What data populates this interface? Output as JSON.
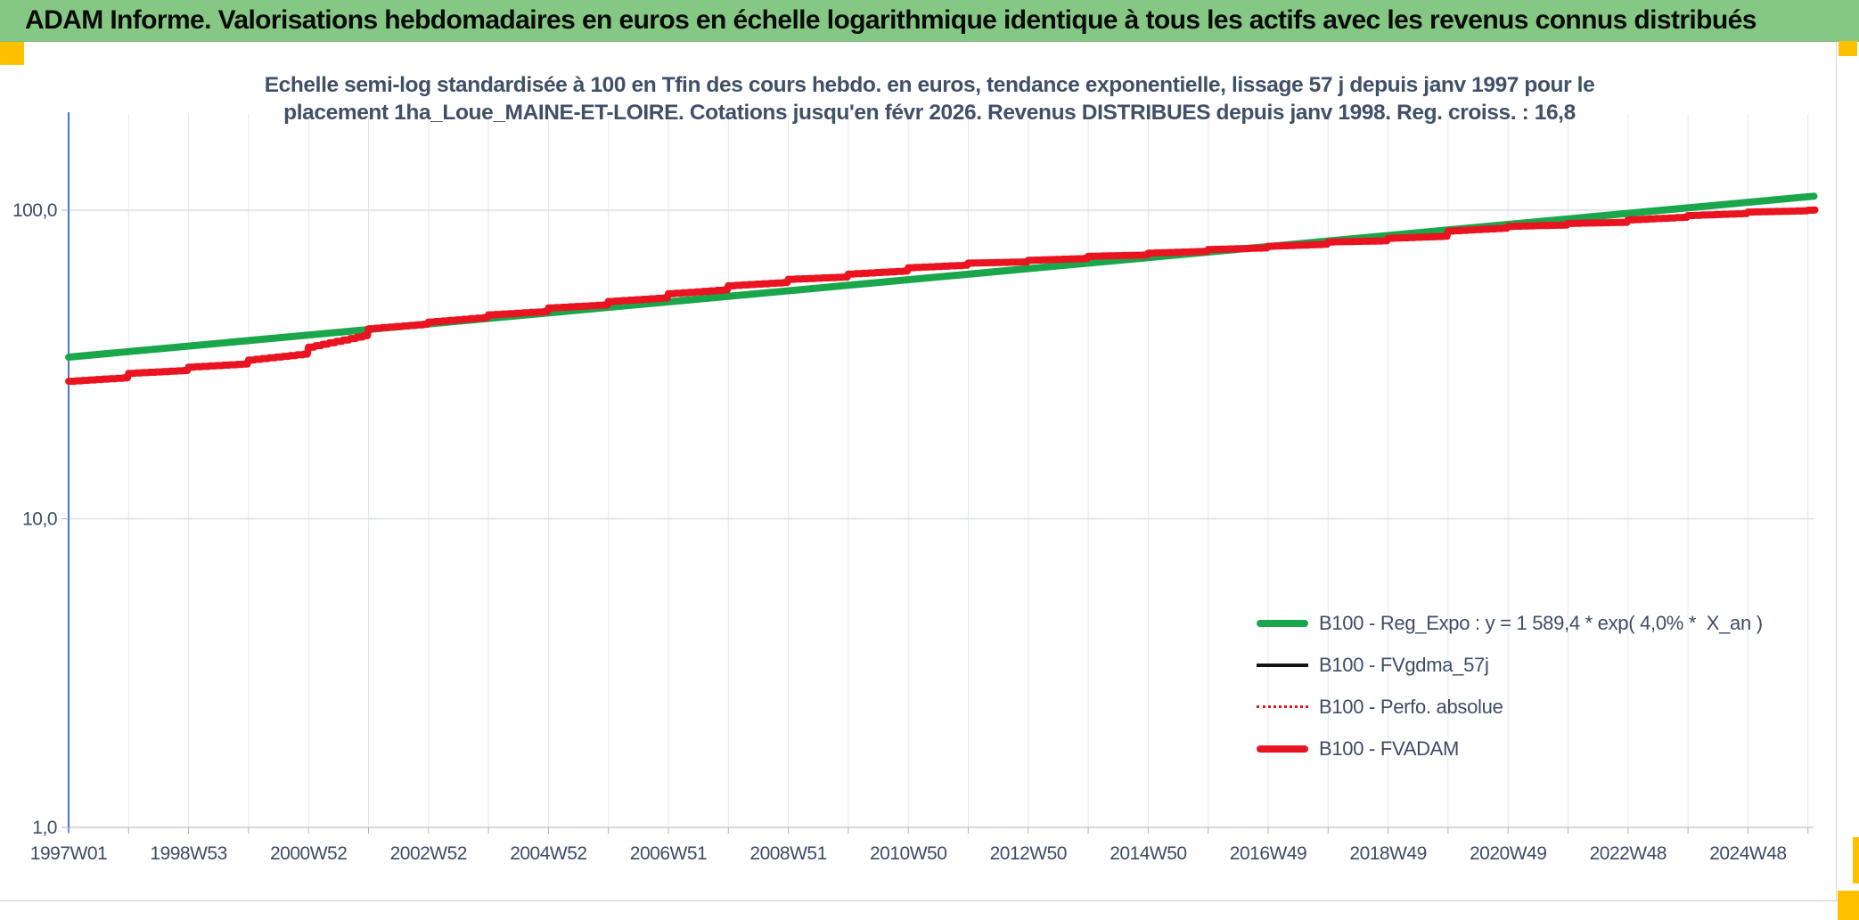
{
  "header": {
    "title": "ADAM Informe. Valorisations hebdomadaires en euros en échelle logarithmique identique à tous les actifs avec les revenus connus distribués",
    "background_color": "#85c884",
    "accent_square_color": "#ffc000"
  },
  "chart": {
    "title_line1": "Echelle semi-log standardisée à 100 en Tfin des cours hebdo. en euros, tendance exponentielle, lissage 57 j depuis janv 1997 pour le",
    "title_line2": "placement 1ha_Loue_MAINE-ET-LOIRE. Cotations jusqu'en févr 2026. Revenus DISTRIBUES depuis janv 1998. Reg. croiss. : 16,8",
    "title_color": "#3f5068"
  },
  "chart_data": {
    "type": "line",
    "x_axis": {
      "start_year": 1997.0,
      "end_year": 2026.1,
      "label_interval_years": 2,
      "labels": [
        "1997W01",
        "1998W53",
        "2000W52",
        "2002W52",
        "2004W52",
        "2006W51",
        "2008W51",
        "2010W50",
        "2012W50",
        "2014W50",
        "2016W49",
        "2018W49",
        "2020W49",
        "2022W48",
        "2024W48"
      ]
    },
    "y_axis": {
      "scale": "log10",
      "min": 1,
      "max": 200,
      "ticks": [
        {
          "label": "100,0",
          "value": 100
        },
        {
          "label": "10,0",
          "value": 10
        },
        {
          "label": "1,0",
          "value": 1
        }
      ]
    },
    "grid": {
      "vertical": "yearly",
      "horizontal": "decades"
    },
    "legend_position": "lower-right-inside",
    "series": [
      {
        "name": "B100 - Reg_Expo : y = 1 589,4 * exp( 4,0% *  X_an )",
        "color": "#1aa64b",
        "style": "solid-thick",
        "points": [
          {
            "year": 1997.0,
            "value": 33.4
          },
          {
            "year": 2026.1,
            "value": 111.0
          }
        ]
      },
      {
        "name": "B100 - FVgdma_57j",
        "color": "#141414",
        "style": "solid-thin",
        "derived": "moving-average-8w-of-FVADAM"
      },
      {
        "name": "B100 - Perfo. absolue",
        "color": "#e9141f",
        "style": "dotted-thin",
        "derived": "same-as-FVADAM"
      },
      {
        "name": "B100 - FVADAM",
        "color": "#e9141f",
        "style": "stepped-thick",
        "yearly_segments": [
          [
            1997,
            27.9,
            28.7
          ],
          [
            1998,
            29.6,
            30.3
          ],
          [
            1999,
            31.0,
            31.8
          ],
          [
            2000,
            32.7,
            34.3
          ],
          [
            2001,
            36.0,
            39.5
          ],
          [
            2002,
            41.3,
            42.8
          ],
          [
            2003,
            43.4,
            45.0
          ],
          [
            2004,
            45.8,
            47.0
          ],
          [
            2005,
            48.2,
            49.4
          ],
          [
            2006,
            50.6,
            52.1
          ],
          [
            2007,
            53.6,
            55.3
          ],
          [
            2008,
            56.9,
            58.4
          ],
          [
            2009,
            59.7,
            60.8
          ],
          [
            2010,
            62.1,
            63.6
          ],
          [
            2011,
            65.1,
            66.4
          ],
          [
            2012,
            67.4,
            68.0
          ],
          [
            2013,
            68.8,
            69.8
          ],
          [
            2014,
            70.9,
            71.6
          ],
          [
            2015,
            72.6,
            73.6
          ],
          [
            2016,
            74.6,
            75.5
          ],
          [
            2017,
            76.4,
            77.6
          ],
          [
            2018,
            78.9,
            79.6
          ],
          [
            2019,
            81.1,
            82.4
          ],
          [
            2020,
            85.6,
            87.6
          ],
          [
            2021,
            88.6,
            89.6
          ],
          [
            2022,
            90.6,
            91.4
          ],
          [
            2023,
            93.0,
            95.0
          ],
          [
            2024,
            96.1,
            97.6
          ],
          [
            2025,
            98.6,
            99.6
          ],
          [
            2026,
            100.0,
            100.2
          ]
        ]
      }
    ]
  }
}
